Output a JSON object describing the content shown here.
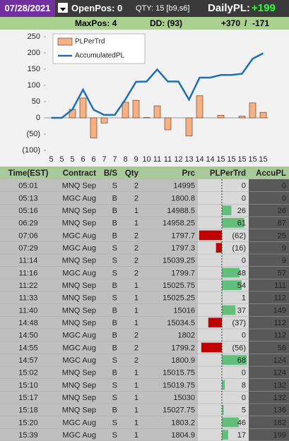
{
  "header": {
    "date": "07/28/2021",
    "open_pos": "OpenPos: 0",
    "qty": "QTY: 15 [b9,s6]",
    "daily_pl_label": "DailyPL:",
    "daily_pl": "+199"
  },
  "summary": {
    "max_pos": "MaxPos: 4",
    "dd": "DD: (93)",
    "gain": "+370",
    "separator": "/",
    "loss": "-171"
  },
  "chart_data": {
    "type": "bar+line",
    "categories": [
      "5",
      "5",
      "5",
      "6",
      "6",
      "7",
      "7",
      "8",
      "9",
      "10",
      "11",
      "11",
      "12",
      "13",
      "14",
      "14",
      "15",
      "15",
      "15",
      "15",
      "15"
    ],
    "series": [
      {
        "name": "PLPerTrd",
        "type": "bar",
        "color": "#f4b183",
        "values": [
          0,
          0,
          26,
          61,
          -62,
          -16,
          0,
          48,
          54,
          1,
          37,
          -37,
          0,
          -56,
          68,
          0,
          8,
          0,
          5,
          46,
          17
        ]
      },
      {
        "name": "AccumulatedPL",
        "type": "line",
        "color": "#1f6fb5",
        "values": [
          0,
          0,
          26,
          87,
          25,
          9,
          9,
          57,
          111,
          112,
          149,
          112,
          112,
          56,
          124,
          124,
          132,
          132,
          136,
          182,
          199
        ]
      }
    ],
    "ylim": [
      -100,
      250
    ],
    "yticks": [
      {
        "value": -100,
        "label": "(100)"
      },
      {
        "value": -50,
        "label": "(50)"
      },
      0,
      50,
      100,
      150,
      200,
      250
    ],
    "legend": "top-left"
  },
  "table": {
    "columns": [
      "Time(EST)",
      "Contract",
      "B/S",
      "Qty",
      "Prc",
      "PLPerTrd",
      "AccuPL"
    ],
    "rows": [
      [
        "05:01",
        "MNQ Sep",
        "S",
        "2",
        "14995",
        "0",
        "0"
      ],
      [
        "05:13",
        "MGC Aug",
        "B",
        "2",
        "1800.8",
        "0",
        "0"
      ],
      [
        "05:16",
        "MNQ Sep",
        "B",
        "1",
        "14988.5",
        "26",
        "26"
      ],
      [
        "06:29",
        "MNQ Sep",
        "B",
        "1",
        "14958.25",
        "61",
        "87"
      ],
      [
        "07:06",
        "MGC Aug",
        "B",
        "2",
        "1797.7",
        "(62)",
        "25"
      ],
      [
        "07:29",
        "MGC Aug",
        "S",
        "2",
        "1797.3",
        "(16)",
        "9"
      ],
      [
        "11:14",
        "MNQ Sep",
        "S",
        "2",
        "15039.25",
        "0",
        "9"
      ],
      [
        "11:16",
        "MGC Aug",
        "S",
        "2",
        "1799.7",
        "48",
        "57"
      ],
      [
        "11:22",
        "MNQ Sep",
        "B",
        "1",
        "15025.75",
        "54",
        "111"
      ],
      [
        "11:33",
        "MNQ Sep",
        "S",
        "1",
        "15025.25",
        "1",
        "112"
      ],
      [
        "11:40",
        "MNQ Sep",
        "B",
        "1",
        "15016",
        "37",
        "149"
      ],
      [
        "14:48",
        "MNQ Sep",
        "B",
        "1",
        "15034.5",
        "(37)",
        "112"
      ],
      [
        "14:50",
        "MGC Aug",
        "B",
        "2",
        "1802",
        "0",
        "112"
      ],
      [
        "14:55",
        "MGC Aug",
        "B",
        "2",
        "1799.2",
        "(56)",
        "56"
      ],
      [
        "14:57",
        "MGC Aug",
        "S",
        "2",
        "1800.9",
        "68",
        "124"
      ],
      [
        "15:02",
        "MNQ Sep",
        "B",
        "1",
        "15015.75",
        "0",
        "124"
      ],
      [
        "15:10",
        "MNQ Sep",
        "S",
        "1",
        "15019.75",
        "8",
        "132"
      ],
      [
        "15:17",
        "MNQ Sep",
        "S",
        "1",
        "15030",
        "0",
        "132"
      ],
      [
        "15:18",
        "MNQ Sep",
        "B",
        "1",
        "15027.75",
        "5",
        "136"
      ],
      [
        "15:20",
        "MGC Aug",
        "S",
        "1",
        "1803.2",
        "46",
        "182"
      ],
      [
        "15:39",
        "MGC Aug",
        "S",
        "1",
        "1804.9",
        "17",
        "199"
      ]
    ]
  }
}
